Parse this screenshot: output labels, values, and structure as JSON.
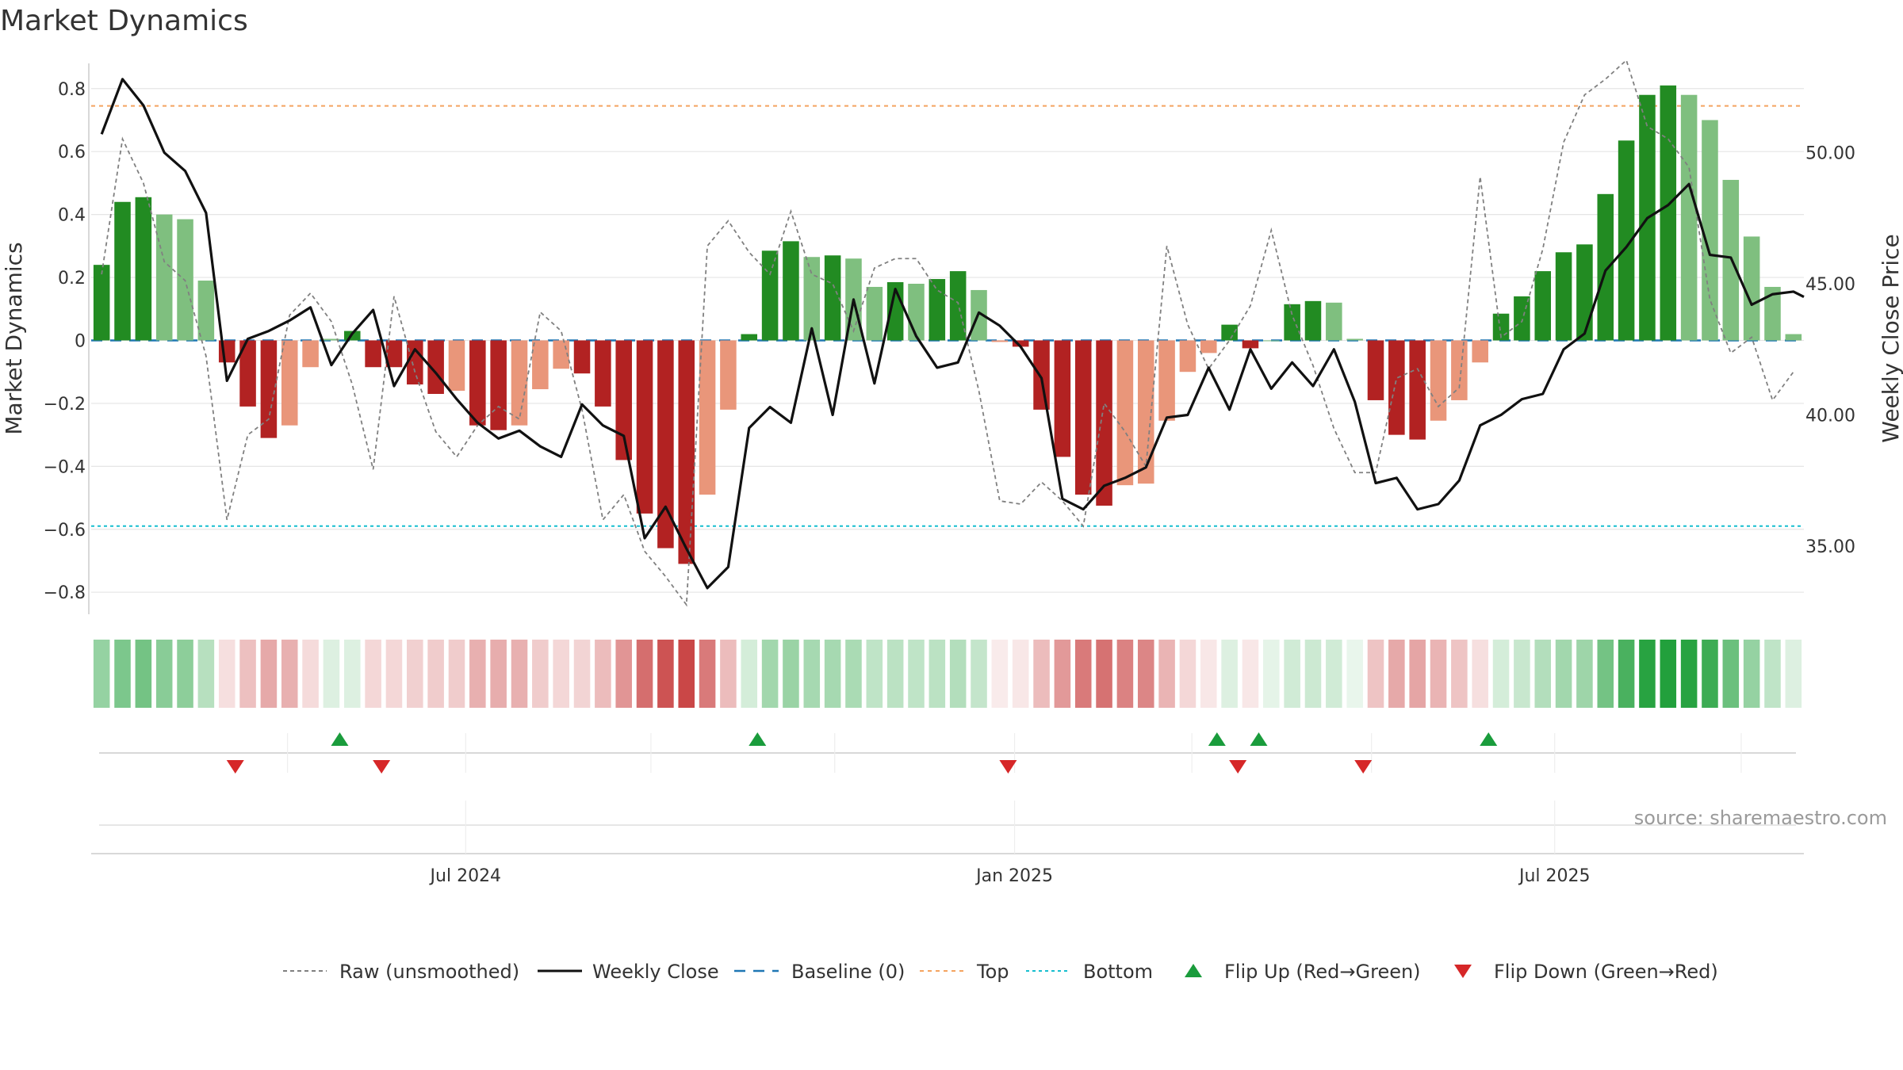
{
  "title": "Market Dynamics",
  "source": "source: sharemaestro.com",
  "colors": {
    "pos_strong": "#228b22",
    "pos_weak": "#7fbf7f",
    "neg_strong": "#b22222",
    "neg_weak": "#e9967a",
    "close": "#111111",
    "raw": "#808080",
    "baseline": "#1f77b4",
    "top": "#f4a460",
    "bottom": "#17becf",
    "flip_up": "#1a9c3c",
    "flip_down": "#d62728",
    "grid": "#e5e5e5"
  },
  "chart_data": {
    "type": "bar",
    "title": "Market Dynamics",
    "y_left_label": "Market Dynamics",
    "y_right_label": "Weekly Close Price",
    "y_left_ticks": [
      "0.8",
      "0.6",
      "0.4",
      "0.2",
      "0",
      "−0.2",
      "−0.4",
      "−0.6",
      "−0.8"
    ],
    "y_left_tick_values": [
      0.8,
      0.6,
      0.4,
      0.2,
      0,
      -0.2,
      -0.4,
      -0.6,
      -0.8
    ],
    "y_right_ticks": [
      "50.00",
      "45.00",
      "40.00",
      "35.00"
    ],
    "y_right_tick_values": [
      50,
      45,
      40,
      35
    ],
    "y_left_range": [
      -0.87,
      0.88
    ],
    "y_right_range": [
      32.4,
      53.4
    ],
    "x_ticks": [
      "Jul 2024",
      "Jan 2025",
      "Jul 2025"
    ],
    "x_tick_positions": [
      17.43,
      43.71,
      69.57
    ],
    "top_level": 0.745,
    "bottom_level": -0.59,
    "baseline": 0,
    "n_weeks": 82,
    "bars": [
      0.24,
      0.44,
      0.455,
      0.4,
      0.385,
      0.19,
      -0.07,
      -0.21,
      -0.31,
      -0.27,
      -0.085,
      0.005,
      0.03,
      -0.085,
      -0.085,
      -0.14,
      -0.17,
      -0.16,
      -0.27,
      -0.285,
      -0.27,
      -0.155,
      -0.09,
      -0.105,
      -0.21,
      -0.38,
      -0.55,
      -0.66,
      -0.71,
      -0.49,
      -0.22,
      0.02,
      0.285,
      0.315,
      0.265,
      0.27,
      0.26,
      0.17,
      0.185,
      0.18,
      0.195,
      0.22,
      0.16,
      -0.005,
      -0.02,
      -0.22,
      -0.37,
      -0.49,
      -0.525,
      -0.46,
      -0.455,
      -0.255,
      -0.1,
      -0.04,
      0.05,
      -0.025,
      0.0,
      0.115,
      0.125,
      0.12,
      0.005,
      -0.19,
      -0.3,
      -0.315,
      -0.255,
      -0.19,
      -0.07,
      0.085,
      0.14,
      0.22,
      0.28,
      0.305,
      0.465,
      0.635,
      0.78,
      0.81,
      0.78,
      0.7,
      0.51,
      0.33,
      0.17,
      0.02
    ],
    "bar_shade": [
      "strong",
      "strong",
      "strong",
      "weak",
      "weak",
      "weak",
      "strong",
      "strong",
      "strong",
      "weak",
      "weak",
      "weak",
      "strong",
      "strong",
      "strong",
      "strong",
      "strong",
      "weak",
      "strong",
      "strong",
      "weak",
      "weak",
      "weak",
      "strong",
      "strong",
      "strong",
      "strong",
      "strong",
      "strong",
      "weak",
      "weak",
      "strong",
      "strong",
      "strong",
      "weak",
      "strong",
      "weak",
      "weak",
      "strong",
      "weak",
      "strong",
      "strong",
      "weak",
      "weak",
      "strong",
      "strong",
      "strong",
      "strong",
      "strong",
      "weak",
      "weak",
      "weak",
      "weak",
      "weak",
      "strong",
      "strong",
      "weak",
      "strong",
      "strong",
      "weak",
      "weak",
      "strong",
      "strong",
      "strong",
      "weak",
      "weak",
      "weak",
      "strong",
      "strong",
      "strong",
      "strong",
      "strong",
      "strong",
      "strong",
      "strong",
      "strong",
      "weak",
      "weak",
      "weak",
      "weak",
      "weak",
      "weak"
    ],
    "raw": [
      0.21,
      0.64,
      0.5,
      0.25,
      0.19,
      -0.05,
      -0.57,
      -0.3,
      -0.25,
      0.08,
      0.15,
      0.06,
      -0.14,
      -0.41,
      0.14,
      -0.1,
      -0.29,
      -0.37,
      -0.27,
      -0.21,
      -0.25,
      0.09,
      0.03,
      -0.22,
      -0.57,
      -0.49,
      -0.67,
      -0.75,
      -0.84,
      0.3,
      0.38,
      0.28,
      0.21,
      0.41,
      0.21,
      0.18,
      0.03,
      0.23,
      0.26,
      0.26,
      0.16,
      0.12,
      -0.16,
      -0.51,
      -0.52,
      -0.45,
      -0.51,
      -0.59,
      -0.2,
      -0.29,
      -0.4,
      0.3,
      0.05,
      -0.09,
      0.0,
      0.11,
      0.35,
      0.08,
      -0.08,
      -0.28,
      -0.42,
      -0.42,
      -0.12,
      -0.09,
      -0.21,
      -0.15,
      0.52,
      0.01,
      0.06,
      0.29,
      0.63,
      0.78,
      0.83,
      0.89,
      0.68,
      0.64,
      0.55,
      0.13,
      -0.04,
      0.01,
      -0.19,
      -0.1
    ],
    "close": [
      50.7,
      52.8,
      51.8,
      50.0,
      49.3,
      47.7,
      41.3,
      42.9,
      43.2,
      43.6,
      44.1,
      41.9,
      43.1,
      44.0,
      41.1,
      42.5,
      41.6,
      40.6,
      39.7,
      39.1,
      39.4,
      38.8,
      38.4,
      40.4,
      39.6,
      39.2,
      35.3,
      36.5,
      34.9,
      33.4,
      34.2,
      39.5,
      40.3,
      39.7,
      43.3,
      40.0,
      44.4,
      41.2,
      44.8,
      43.0,
      41.8,
      42.0,
      43.9,
      43.4,
      42.6,
      41.4,
      36.8,
      36.4,
      37.3,
      37.6,
      38.0,
      39.9,
      40.0,
      41.8,
      40.2,
      42.5,
      41.0,
      42.0,
      41.1,
      42.5,
      40.5,
      37.4,
      37.6,
      36.4,
      36.6,
      37.5,
      39.6,
      40.0,
      40.6,
      40.8,
      42.5,
      43.1,
      45.5,
      46.4,
      47.5,
      48.0,
      48.8,
      46.1,
      46.0,
      44.2,
      44.6,
      44.7,
      44.5
    ],
    "close_weeks": [
      0,
      1,
      2,
      3,
      4,
      5,
      6,
      7,
      8,
      9,
      10,
      11,
      12,
      13,
      14,
      15,
      16,
      17,
      18,
      19,
      20,
      21,
      22,
      23,
      24,
      25,
      26,
      27,
      28,
      29,
      30,
      31,
      32,
      33,
      34,
      35,
      36,
      37,
      38,
      39,
      40,
      41,
      42,
      43,
      44,
      45,
      46,
      47,
      48,
      49,
      50,
      51,
      52,
      53,
      54,
      55,
      56,
      57,
      58,
      59,
      60,
      61,
      62,
      63,
      64,
      65,
      66,
      67,
      68,
      69,
      70,
      71,
      72,
      73,
      74,
      75,
      76,
      77,
      78,
      79,
      80,
      81,
      81.5
    ],
    "heat": [
      0.22,
      0.28,
      0.3,
      0.25,
      0.24,
      0.14,
      -0.05,
      -0.13,
      -0.19,
      -0.17,
      -0.06,
      0.05,
      0.05,
      -0.07,
      -0.07,
      -0.09,
      -0.1,
      -0.1,
      -0.17,
      -0.18,
      -0.17,
      -0.1,
      -0.07,
      -0.08,
      -0.14,
      -0.24,
      -0.34,
      -0.41,
      -0.44,
      -0.31,
      -0.14,
      0.07,
      0.19,
      0.21,
      0.18,
      0.18,
      0.17,
      0.12,
      0.13,
      0.12,
      0.13,
      0.15,
      0.11,
      -0.02,
      -0.03,
      -0.14,
      -0.23,
      -0.31,
      -0.33,
      -0.29,
      -0.28,
      -0.16,
      -0.07,
      -0.03,
      0.05,
      -0.03,
      0.03,
      0.08,
      0.09,
      0.08,
      0.02,
      -0.12,
      -0.19,
      -0.2,
      -0.16,
      -0.12,
      -0.05,
      0.07,
      0.1,
      0.15,
      0.19,
      0.2,
      0.3,
      0.4,
      0.48,
      0.5,
      0.48,
      0.43,
      0.32,
      0.22,
      0.12,
      0.05
    ],
    "flip_up_weeks": [
      11.4,
      31.4,
      53.4,
      55.4,
      66.4
    ],
    "flip_down_weeks": [
      6.4,
      13.4,
      43.4,
      54.4,
      60.4
    ],
    "legend": {
      "raw": "Raw (unsmoothed)",
      "close": "Weekly Close",
      "baseline": "Baseline (0)",
      "top": "Top",
      "bottom": "Bottom",
      "flip_up": "Flip Up (Red→Green)",
      "flip_down": "Flip Down (Green→Red)"
    }
  }
}
